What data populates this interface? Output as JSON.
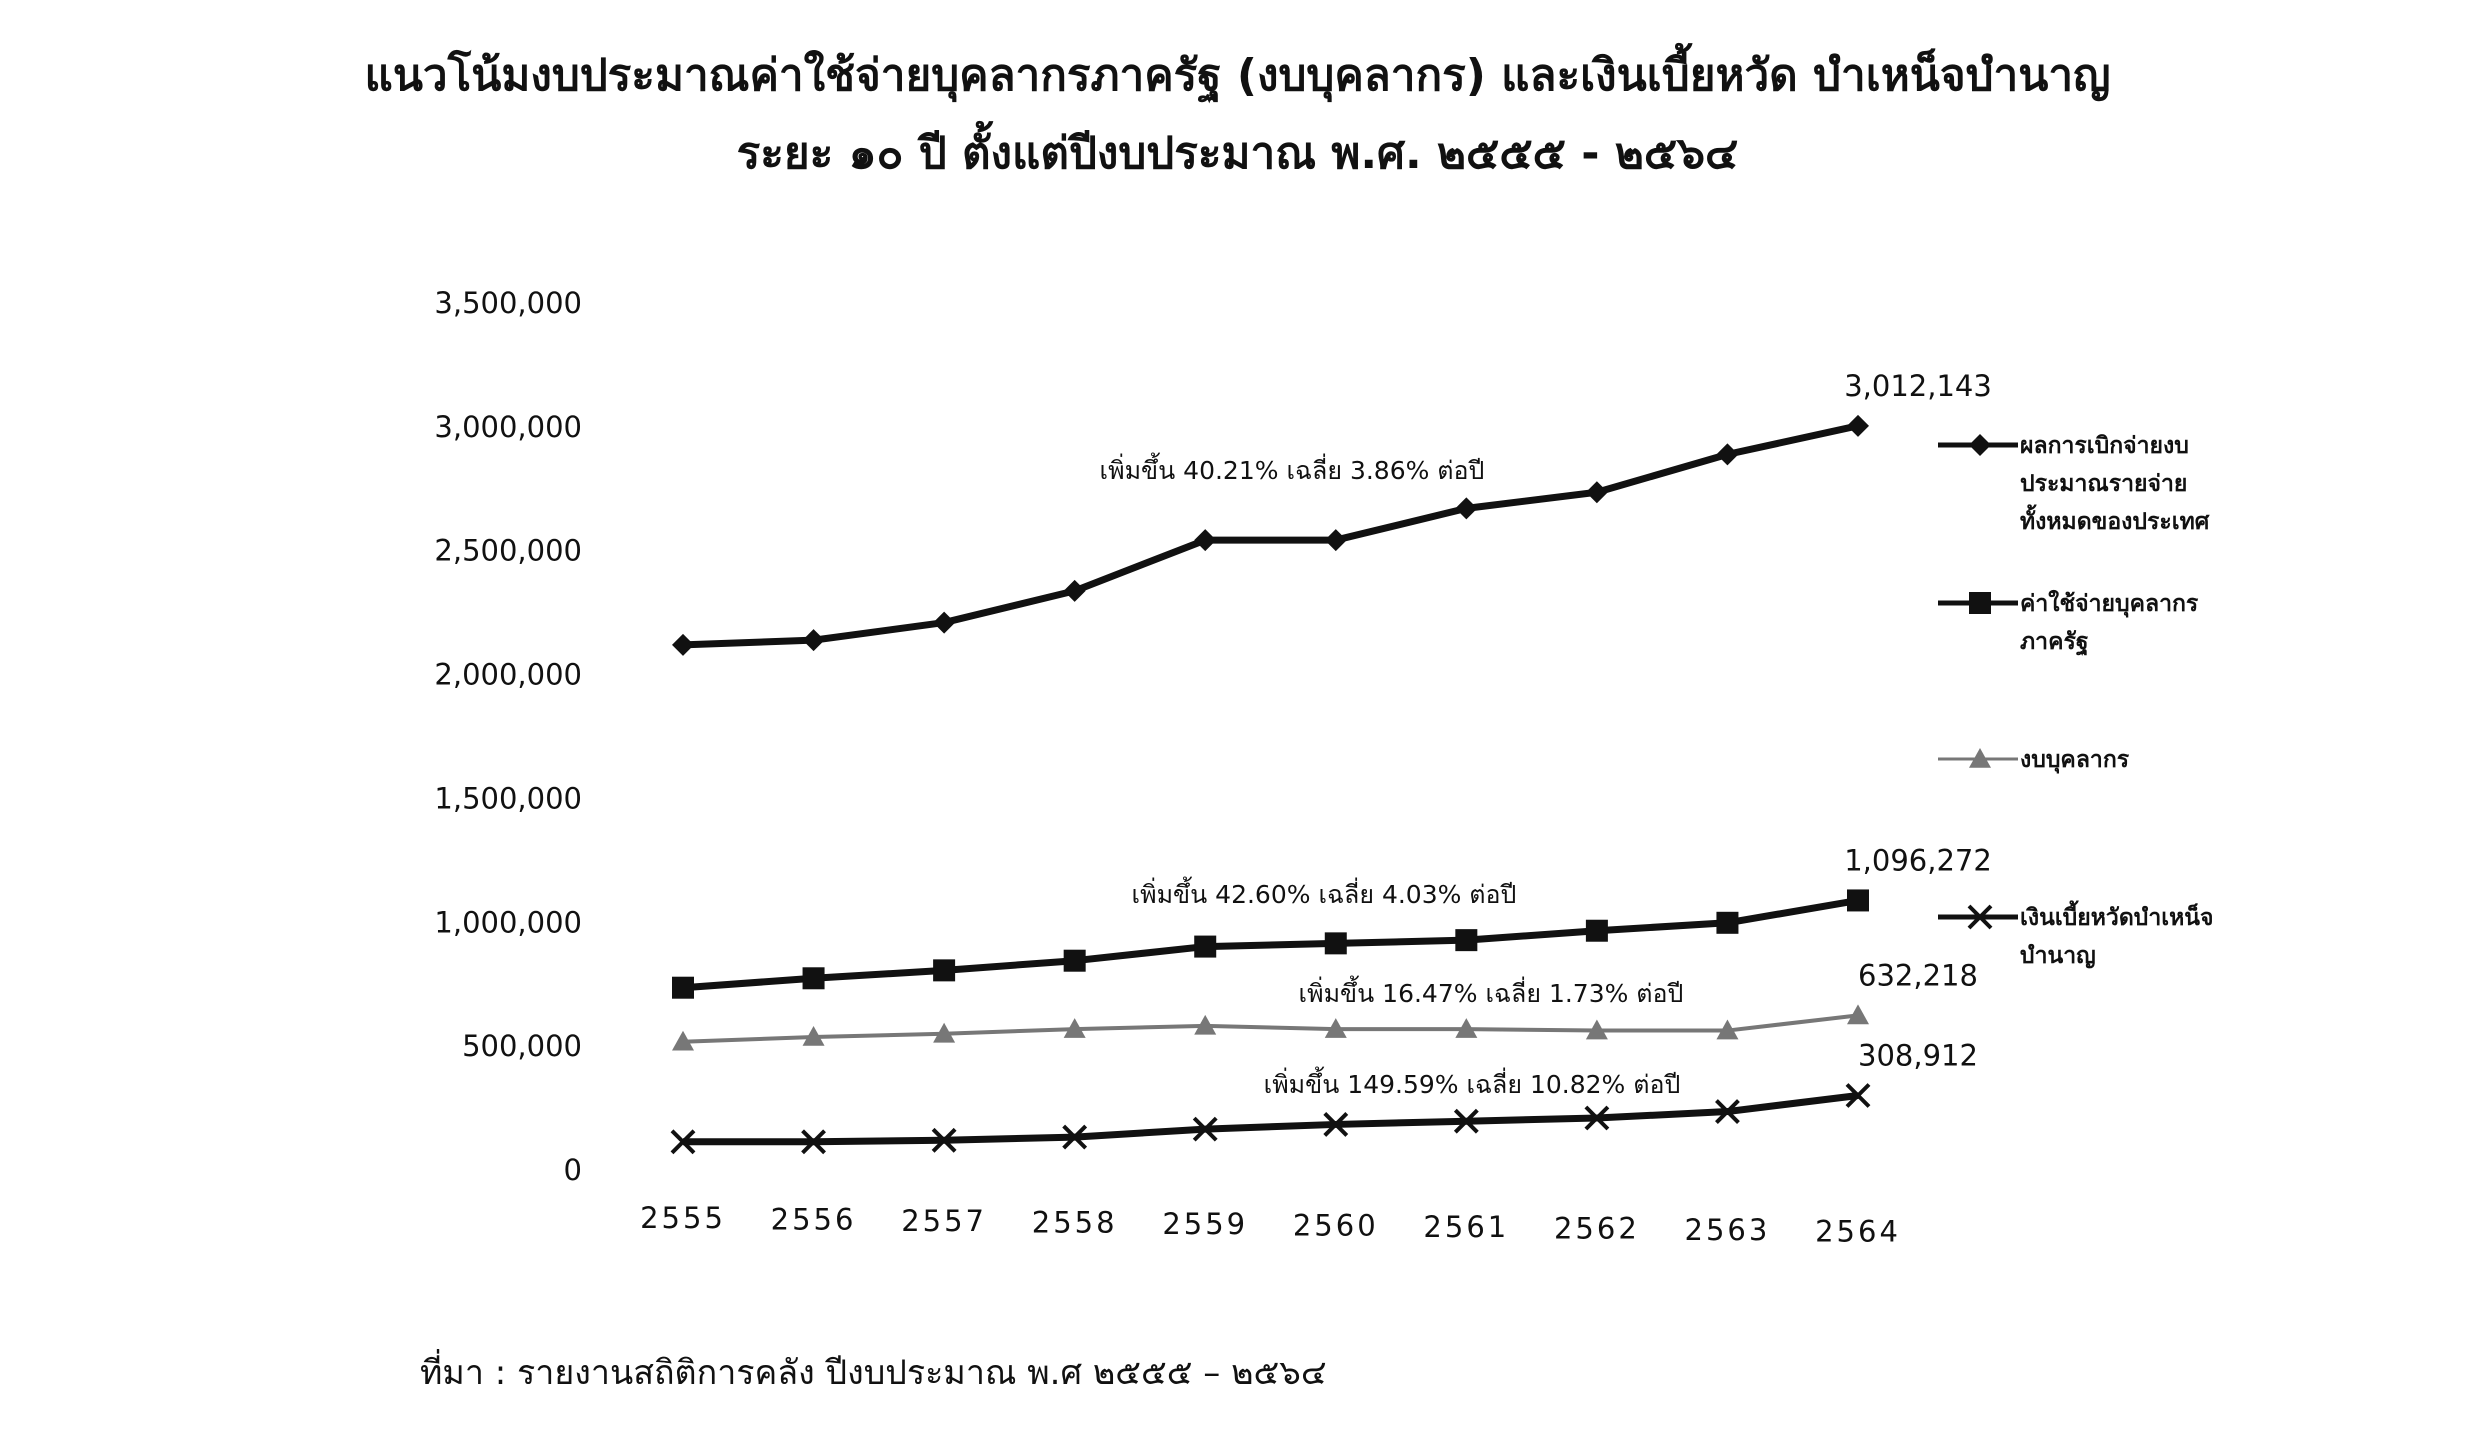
{
  "chart_data": {
    "type": "line",
    "title": "แนวโน้มงบประมาณค่าใช้จ่ายบุคลากรภาครัฐ (งบบุคลากร) และเงินเบี้ยหวัด บำเหน็จบำนาญ",
    "subtitle": "ระยะ ๑๐ ปี ตั้งแต่ปีงบประมาณ พ.ศ. ๒๕๕๕ - ๒๕๖๔",
    "source": "ที่มา :  รายงานสถิติการคลัง ปีงบประมาณ พ.ศ ๒๕๕๕ – ๒๕๖๔",
    "categories": [
      "2555",
      "2556",
      "2557",
      "2558",
      "2559",
      "2560",
      "2561",
      "2562",
      "2563",
      "2564"
    ],
    "ylim": [
      0,
      3500000
    ],
    "yticks": [
      0,
      {
        "value": 500000,
        "label": "500,000"
      },
      {
        "value": 1000000,
        "label": "1,000,000"
      },
      {
        "value": 1500000,
        "label": "1,500,000"
      },
      {
        "value": 2000000,
        "label": "2,000,000"
      },
      {
        "value": 2500000,
        "label": "2,500,000"
      },
      {
        "value": 3000000,
        "label": "3,000,000"
      },
      {
        "value": 3500000,
        "label": "3,500,000"
      }
    ],
    "grid": false,
    "legend": "right",
    "series": [
      {
        "name": "ผลการเบิกจ่ายงบประมาณรายจ่ายทั้งหมดของประเทศ",
        "color": "#111111",
        "marker": "diamond",
        "values": [
          2128000,
          2147000,
          2218000,
          2346000,
          2551000,
          2551000,
          2679000,
          2744000,
          2897000,
          3012143
        ],
        "value_labels": [
          null,
          null,
          null,
          null,
          null,
          null,
          null,
          null,
          null,
          "3,012,143"
        ],
        "annotation": "เพิ่มขึ้น 40.21% เฉลี่ย 3.86% ต่อปี"
      },
      {
        "name": "ค่าใช้จ่ายบุคลากรภาครัฐ",
        "color": "#111111",
        "marker": "square",
        "values": [
          744000,
          782000,
          814000,
          853000,
          910000,
          923000,
          936000,
          974000,
          1006000,
          1096272
        ],
        "value_labels": [
          null,
          null,
          null,
          null,
          null,
          null,
          null,
          null,
          null,
          "1,096,272"
        ],
        "annotation": "เพิ่มขึ้น 42.60% เฉลี่ย 4.03% ต่อปี"
      },
      {
        "name": "งบบุคลากร",
        "color": "#777777",
        "marker": "triangle",
        "values": [
          526000,
          545000,
          558000,
          577000,
          590000,
          577000,
          577000,
          571000,
          571000,
          632218
        ],
        "value_labels": [
          null,
          null,
          null,
          null,
          null,
          null,
          null,
          null,
          null,
          "632,218"
        ],
        "annotation": "เพิ่มขึ้น 16.47% เฉลี่ย 1.73% ต่อปี"
      },
      {
        "name": "เงินเบี้ยหวัดบำเหน็จ บำนาญ",
        "color": "#111111",
        "marker": "x",
        "values": [
          122000,
          122000,
          128000,
          141000,
          173000,
          192000,
          205000,
          218000,
          244000,
          308912
        ],
        "value_labels": [
          null,
          null,
          null,
          null,
          null,
          null,
          null,
          null,
          null,
          "308,912"
        ],
        "annotation": "เพิ่มขึ้น 149.59% เฉลี่ย 10.82% ต่อปี"
      }
    ]
  }
}
